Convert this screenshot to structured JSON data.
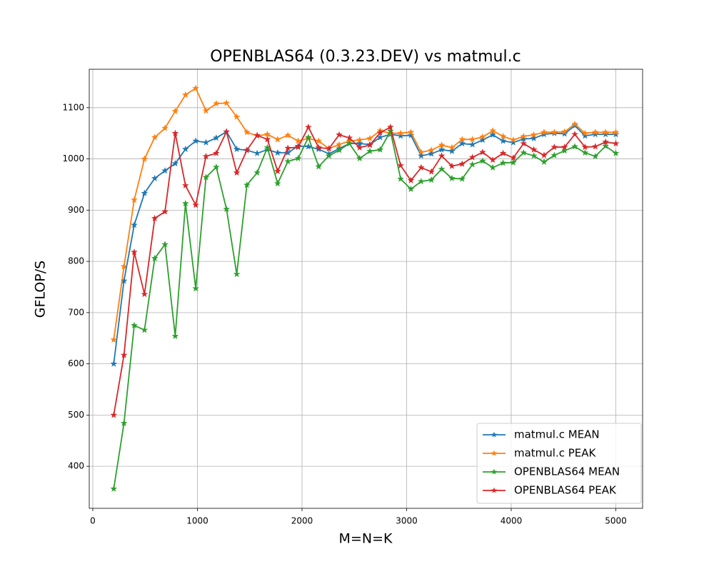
{
  "chart_data": {
    "type": "line",
    "title": "OPENBLAS64 (0.3.23.DEV) vs matmul.c",
    "x_label": "M=N=K",
    "y_label": "GFLOP/S",
    "x": [
      200,
      298,
      396,
      494,
      592,
      690,
      788,
      886,
      984,
      1082,
      1180,
      1278,
      1376,
      1473,
      1571,
      1669,
      1767,
      1865,
      1963,
      2061,
      2159,
      2257,
      2355,
      2453,
      2551,
      2649,
      2747,
      2845,
      2943,
      3041,
      3139,
      3237,
      3335,
      3433,
      3531,
      3629,
      3727,
      3824,
      3922,
      4020,
      4118,
      4216,
      4314,
      4412,
      4510,
      4608,
      4706,
      4804,
      4902,
      5000
    ],
    "series": [
      {
        "name": "matmul.c MEAN",
        "color": "#1f77b4",
        "values": [
          600,
          762,
          871,
          933,
          962,
          977,
          991,
          1019,
          1035,
          1032,
          1041,
          1053,
          1019,
          1017,
          1011,
          1018,
          1012,
          1012,
          1025,
          1024,
          1019,
          1010,
          1020,
          1030,
          1030,
          1028,
          1042,
          1048,
          1045,
          1046,
          1006,
          1010,
          1018,
          1015,
          1030,
          1028,
          1037,
          1047,
          1035,
          1032,
          1039,
          1040,
          1048,
          1050,
          1049,
          1065,
          1045,
          1048,
          1048,
          1048
        ]
      },
      {
        "name": "matmul.c PEAK",
        "color": "#ff7f0e",
        "values": [
          647,
          790,
          920,
          1000,
          1042,
          1060,
          1093,
          1125,
          1138,
          1094,
          1108,
          1109,
          1082,
          1052,
          1045,
          1048,
          1038,
          1046,
          1035,
          1040,
          1035,
          1020,
          1028,
          1035,
          1037,
          1040,
          1055,
          1050,
          1050,
          1052,
          1013,
          1017,
          1027,
          1022,
          1038,
          1038,
          1043,
          1055,
          1044,
          1037,
          1044,
          1047,
          1052,
          1052,
          1053,
          1068,
          1050,
          1052,
          1052,
          1052
        ]
      },
      {
        "name": "OPENBLAS64 MEAN",
        "color": "#2ca02c",
        "values": [
          356,
          484,
          675,
          666,
          806,
          833,
          654,
          913,
          747,
          964,
          984,
          902,
          775,
          949,
          973,
          1022,
          952,
          995,
          1001,
          1042,
          985,
          1006,
          1017,
          1030,
          1001,
          1015,
          1018,
          1054,
          961,
          941,
          956,
          959,
          980,
          962,
          961,
          989,
          996,
          983,
          992,
          993,
          1012,
          1006,
          994,
          1007,
          1016,
          1024,
          1012,
          1005,
          1025,
          1011
        ]
      },
      {
        "name": "OPENBLAS64 PEAK",
        "color": "#d62728",
        "values": [
          500,
          617,
          818,
          736,
          884,
          897,
          1050,
          948,
          910,
          1005,
          1011,
          1053,
          973,
          1017,
          1046,
          1038,
          976,
          1021,
          1023,
          1062,
          1022,
          1020,
          1047,
          1041,
          1022,
          1027,
          1051,
          1062,
          987,
          958,
          983,
          975,
          1006,
          986,
          990,
          1003,
          1013,
          998,
          1011,
          1002,
          1030,
          1018,
          1007,
          1023,
          1023,
          1048,
          1023,
          1024,
          1033,
          1030
        ]
      }
    ],
    "xlim": [
      -34,
      5256
    ],
    "ylim": [
      318,
      1175
    ],
    "xticks": [
      0,
      1000,
      2000,
      3000,
      4000,
      5000
    ],
    "yticks": [
      400,
      500,
      600,
      700,
      800,
      900,
      1000,
      1100
    ],
    "grid": true,
    "legend": "lower right",
    "marker": "star"
  }
}
